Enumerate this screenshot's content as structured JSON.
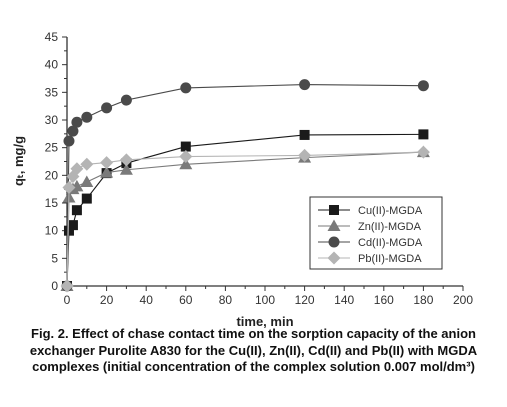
{
  "chart_data": {
    "type": "line",
    "xlabel": "time, min",
    "ylabel": "qₜ, mg/g",
    "xlim": [
      0,
      200
    ],
    "ylim": [
      0,
      45
    ],
    "x_ticks": [
      "0",
      "20",
      "40",
      "60",
      "80",
      "100",
      "120",
      "140",
      "160",
      "180",
      "200"
    ],
    "y_ticks": [
      "0",
      "5",
      "10",
      "15",
      "20",
      "25",
      "30",
      "35",
      "40",
      "45"
    ],
    "grid": false,
    "legend_position": "bottom-right",
    "series": [
      {
        "name": "Cu(II)-MGDA",
        "marker": "square",
        "color": "#1a1a1a",
        "x": [
          0,
          1,
          3,
          5,
          10,
          20,
          30,
          60,
          120,
          180
        ],
        "y": [
          0,
          10.0,
          11.0,
          13.7,
          15.8,
          20.4,
          22.2,
          25.2,
          27.3,
          27.4
        ]
      },
      {
        "name": "Zn(II)-MGDA",
        "marker": "triangle",
        "color": "#7a7a7a",
        "x": [
          0,
          1,
          3,
          5,
          10,
          20,
          30,
          60,
          120,
          180
        ],
        "y": [
          0,
          16.0,
          17.5,
          18.0,
          18.8,
          20.5,
          21.0,
          22.0,
          23.2,
          24.2
        ]
      },
      {
        "name": "Cd(II)-MGDA",
        "marker": "circle",
        "color": "#4a4a4a",
        "x": [
          0,
          1,
          3,
          5,
          10,
          20,
          30,
          60,
          120,
          180
        ],
        "y": [
          0,
          26.2,
          28.0,
          29.6,
          30.5,
          32.2,
          33.6,
          35.8,
          36.4,
          36.2
        ]
      },
      {
        "name": "Pb(II)-MGDA",
        "marker": "diamond",
        "color": "#b4b4b4",
        "x": [
          0,
          1,
          3,
          5,
          10,
          20,
          30,
          60,
          120,
          180
        ],
        "y": [
          0,
          17.8,
          19.8,
          21.2,
          22.0,
          22.3,
          22.8,
          23.4,
          23.6,
          24.2
        ]
      }
    ]
  },
  "caption": {
    "text": "Fig. 2. Effect of chase contact time on the sorption capacity of the anion exchanger Purolite A830 for the Cu(II), Zn(II), Cd(II) and Pb(II) with MGDA complexes (initial concentration of the complex solution 0.007 mol/dm³)"
  }
}
